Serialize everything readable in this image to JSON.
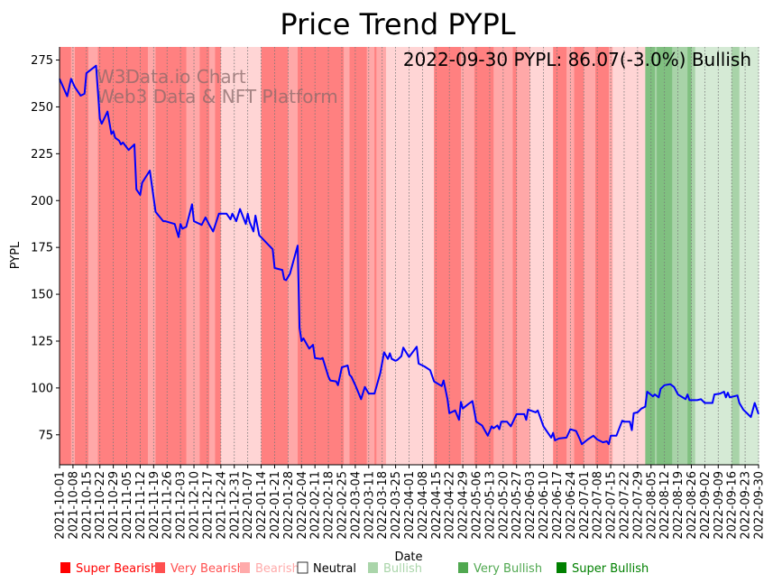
{
  "chart_data": {
    "type": "line",
    "title": "Price Trend PYPL",
    "xlabel": "Date",
    "ylabel": "PYPL",
    "x_start_date": "2021-10-01",
    "x_unit": "days since 2021-10-01",
    "xlim": [
      0,
      364
    ],
    "ylim": [
      59,
      282
    ],
    "yticks": [
      75,
      100,
      125,
      150,
      175,
      200,
      225,
      250,
      275
    ],
    "grid": "vertical dotted at weekly ticks",
    "xtick_days_step": 7,
    "xtick_labels": [
      "2021-10-01",
      "2021-10-08",
      "2021-10-15",
      "2021-10-22",
      "2021-10-29",
      "2021-11-05",
      "2021-11-12",
      "2021-11-19",
      "2021-11-26",
      "2021-12-03",
      "2021-12-10",
      "2021-12-17",
      "2021-12-24",
      "2021-12-31",
      "2022-01-07",
      "2022-01-14",
      "2022-01-21",
      "2022-01-28",
      "2022-02-04",
      "2022-02-11",
      "2022-02-18",
      "2022-02-25",
      "2022-03-04",
      "2022-03-11",
      "2022-03-18",
      "2022-03-25",
      "2022-04-01",
      "2022-04-08",
      "2022-04-15",
      "2022-04-22",
      "2022-04-29",
      "2022-05-06",
      "2022-05-13",
      "2022-05-20",
      "2022-05-27",
      "2022-06-03",
      "2022-06-10",
      "2022-06-17",
      "2022-06-24",
      "2022-07-01",
      "2022-07-08",
      "2022-07-15",
      "2022-07-22",
      "2022-07-29",
      "2022-08-05",
      "2022-08-12",
      "2022-08-19",
      "2022-08-26",
      "2022-09-02",
      "2022-09-09",
      "2022-09-16",
      "2022-09-23",
      "2022-09-30"
    ],
    "annotation": "2022-09-30 PYPL: 86.07(-3.0%) Bullish",
    "watermark": [
      "W3Data.io Chart",
      "Web3 Data & NFT Platform"
    ],
    "series": [
      {
        "name": "PYPL",
        "color": "#0000ff",
        "points": [
          [
            0,
            265
          ],
          [
            4,
            255.7
          ],
          [
            6,
            265
          ],
          [
            8,
            260.5
          ],
          [
            11,
            256
          ],
          [
            13,
            257
          ],
          [
            14,
            268
          ],
          [
            19,
            272
          ],
          [
            21,
            243.7
          ],
          [
            22,
            241
          ],
          [
            25,
            247.5
          ],
          [
            27,
            235.5
          ],
          [
            28,
            237
          ],
          [
            29,
            233.5
          ],
          [
            31,
            232
          ],
          [
            32,
            230
          ],
          [
            33,
            231
          ],
          [
            36,
            227
          ],
          [
            39,
            230
          ],
          [
            40,
            206
          ],
          [
            42,
            203
          ],
          [
            43,
            209.5
          ],
          [
            47,
            216
          ],
          [
            50,
            194
          ],
          [
            54,
            189
          ],
          [
            55,
            189
          ],
          [
            60,
            187.5
          ],
          [
            62,
            180.5
          ],
          [
            63,
            187.5
          ],
          [
            64,
            185
          ],
          [
            66,
            186
          ],
          [
            69,
            198
          ],
          [
            70,
            189
          ],
          [
            74,
            187
          ],
          [
            76,
            191
          ],
          [
            78,
            187
          ],
          [
            80,
            183.5
          ],
          [
            83,
            193
          ],
          [
            87,
            193
          ],
          [
            89,
            190
          ],
          [
            90,
            193
          ],
          [
            92,
            189
          ],
          [
            94,
            195.5
          ],
          [
            97,
            187.5
          ],
          [
            98,
            193
          ],
          [
            99,
            188.5
          ],
          [
            101,
            183.5
          ],
          [
            102,
            192
          ],
          [
            104,
            181.5
          ],
          [
            111,
            174
          ],
          [
            112,
            164
          ],
          [
            116,
            163
          ],
          [
            117,
            158
          ],
          [
            118,
            157.5
          ],
          [
            120,
            161
          ],
          [
            124,
            176
          ],
          [
            125,
            132
          ],
          [
            126,
            125
          ],
          [
            127,
            126.5
          ],
          [
            130,
            121
          ],
          [
            132,
            123
          ],
          [
            133,
            116
          ],
          [
            136,
            115.5
          ],
          [
            137,
            116
          ],
          [
            140,
            106
          ],
          [
            141,
            104
          ],
          [
            144,
            103.5
          ],
          [
            145,
            101.5
          ],
          [
            147,
            111
          ],
          [
            150,
            112
          ],
          [
            151,
            107
          ],
          [
            152,
            106
          ],
          [
            154,
            101.5
          ],
          [
            157,
            94
          ],
          [
            159,
            100.5
          ],
          [
            161,
            97
          ],
          [
            164,
            97
          ],
          [
            167,
            108
          ],
          [
            169,
            119
          ],
          [
            171,
            115.5
          ],
          [
            172,
            118.5
          ],
          [
            173,
            115.5
          ],
          [
            175,
            114.5
          ],
          [
            176,
            115
          ],
          [
            178,
            117
          ],
          [
            179,
            121.5
          ],
          [
            182,
            116.5
          ],
          [
            186,
            122
          ],
          [
            187,
            113
          ],
          [
            190,
            111.5
          ],
          [
            193,
            109.5
          ],
          [
            195,
            103.5
          ],
          [
            199,
            101
          ],
          [
            200,
            104
          ],
          [
            202,
            94
          ],
          [
            203,
            86.5
          ],
          [
            206,
            88
          ],
          [
            208,
            83
          ],
          [
            209,
            92.5
          ],
          [
            210,
            89
          ],
          [
            213,
            91.5
          ],
          [
            215,
            93
          ],
          [
            217,
            82
          ],
          [
            220,
            80
          ],
          [
            223,
            74.5
          ],
          [
            225,
            79.5
          ],
          [
            226,
            78.5
          ],
          [
            228,
            80
          ],
          [
            229,
            78
          ],
          [
            230,
            82
          ],
          [
            233,
            82
          ],
          [
            235,
            79.5
          ],
          [
            238,
            86
          ],
          [
            242,
            86
          ],
          [
            243,
            83
          ],
          [
            244,
            88.5
          ],
          [
            248,
            87
          ],
          [
            249,
            88
          ],
          [
            252,
            79.5
          ],
          [
            256,
            73.5
          ],
          [
            257,
            76
          ],
          [
            258,
            72
          ],
          [
            260,
            73
          ],
          [
            264,
            73.5
          ],
          [
            266,
            78
          ],
          [
            269,
            77
          ],
          [
            271,
            72.5
          ],
          [
            272,
            70
          ],
          [
            275,
            72.5
          ],
          [
            278,
            74.5
          ],
          [
            279,
            73.5
          ],
          [
            280,
            72.5
          ],
          [
            283,
            71
          ],
          [
            285,
            71.5
          ],
          [
            286,
            70
          ],
          [
            287,
            74.5
          ],
          [
            290,
            74.5
          ],
          [
            293,
            82.5
          ],
          [
            294,
            82
          ],
          [
            297,
            82
          ],
          [
            298,
            77.5
          ],
          [
            299,
            86.5
          ],
          [
            301,
            87
          ],
          [
            303,
            89
          ],
          [
            305,
            90
          ],
          [
            306,
            98
          ],
          [
            309,
            95.5
          ],
          [
            310,
            96.5
          ],
          [
            312,
            95
          ],
          [
            313,
            99.5
          ],
          [
            315,
            101.5
          ],
          [
            318,
            102
          ],
          [
            320,
            100.5
          ],
          [
            322,
            96.5
          ],
          [
            326,
            94
          ],
          [
            327,
            96.5
          ],
          [
            328,
            93.5
          ],
          [
            332,
            93.5
          ],
          [
            334,
            94
          ],
          [
            336,
            92
          ],
          [
            340,
            92
          ],
          [
            341,
            96.5
          ],
          [
            344,
            97
          ],
          [
            346,
            98
          ],
          [
            347,
            95
          ],
          [
            348,
            97.5
          ],
          [
            349,
            95
          ],
          [
            353,
            96
          ],
          [
            354,
            92
          ],
          [
            356,
            88.5
          ],
          [
            360,
            84.5
          ],
          [
            362,
            92
          ],
          [
            364,
            86.07
          ]
        ]
      }
    ],
    "sentiment_bands": [
      [
        0,
        6,
        "super_bearish"
      ],
      [
        6,
        8,
        "very_bearish"
      ],
      [
        8,
        15,
        "super_bearish"
      ],
      [
        15,
        20,
        "very_bearish"
      ],
      [
        20,
        46,
        "super_bearish"
      ],
      [
        46,
        50,
        "very_bearish"
      ],
      [
        50,
        66,
        "super_bearish"
      ],
      [
        66,
        73,
        "very_bearish"
      ],
      [
        73,
        78,
        "super_bearish"
      ],
      [
        78,
        81,
        "very_bearish"
      ],
      [
        81,
        84,
        "super_bearish"
      ],
      [
        84,
        105,
        "bearish"
      ],
      [
        105,
        119,
        "super_bearish"
      ],
      [
        119,
        124,
        "very_bearish"
      ],
      [
        124,
        148,
        "super_bearish"
      ],
      [
        148,
        151,
        "very_bearish"
      ],
      [
        151,
        160,
        "super_bearish"
      ],
      [
        160,
        164,
        "very_bearish"
      ],
      [
        164,
        165,
        "super_bearish"
      ],
      [
        165,
        170,
        "very_bearish"
      ],
      [
        170,
        195,
        "bearish"
      ],
      [
        195,
        209,
        "super_bearish"
      ],
      [
        209,
        216,
        "very_bearish"
      ],
      [
        216,
        226,
        "super_bearish"
      ],
      [
        226,
        236,
        "very_bearish"
      ],
      [
        236,
        238,
        "super_bearish"
      ],
      [
        238,
        245,
        "very_bearish"
      ],
      [
        245,
        257,
        "bearish"
      ],
      [
        257,
        264,
        "super_bearish"
      ],
      [
        264,
        268,
        "very_bearish"
      ],
      [
        268,
        273,
        "super_bearish"
      ],
      [
        273,
        279,
        "very_bearish"
      ],
      [
        279,
        286,
        "super_bearish"
      ],
      [
        286,
        288,
        "very_bearish"
      ],
      [
        288,
        305,
        "bearish"
      ],
      [
        305,
        310,
        "super_bullish"
      ],
      [
        310,
        311,
        "very_bullish"
      ],
      [
        311,
        319,
        "super_bullish"
      ],
      [
        319,
        327,
        "very_bullish"
      ],
      [
        327,
        329,
        "super_bullish"
      ],
      [
        329,
        331,
        "very_bullish"
      ],
      [
        331,
        350,
        "bullish"
      ],
      [
        350,
        354,
        "very_bullish"
      ],
      [
        354,
        364,
        "bullish"
      ]
    ],
    "band_colors": {
      "super_bearish": "#ff8080",
      "very_bearish": "#ffa8a8",
      "bearish": "#ffd5d5",
      "neutral": "#ffffff",
      "bullish": "#d5ead5",
      "very_bullish": "#a8d3a8",
      "super_bullish": "#80c080"
    },
    "legend": {
      "placement": "bottom",
      "items": [
        {
          "label": "Super Bearish",
          "color": "#ff0000"
        },
        {
          "label": "Very Bearish",
          "color": "#ff5050"
        },
        {
          "label": "Bearish",
          "color": "#ffaaaa"
        },
        {
          "label": "Neutral",
          "color": "#ffffff",
          "text_color": "#000000"
        },
        {
          "label": "Bullish",
          "color": "#aad5aa"
        },
        {
          "label": "Very Bullish",
          "color": "#50a850"
        },
        {
          "label": "Super Bullish",
          "color": "#008000"
        }
      ]
    }
  }
}
